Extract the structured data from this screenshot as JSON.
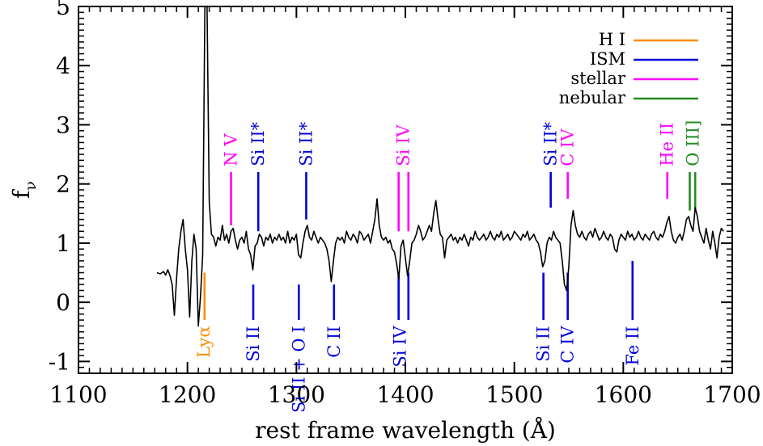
{
  "chart_data": {
    "type": "line",
    "xlabel": "rest frame wavelength (Å)",
    "ylabel": "f",
    "ylabel_sub": "ν",
    "xlim": [
      1100,
      1700
    ],
    "ylim": [
      -1.2,
      5
    ],
    "x_ticks": [
      1100,
      1200,
      1300,
      1400,
      1500,
      1600,
      1700
    ],
    "y_ticks": [
      -1,
      0,
      1,
      2,
      3,
      4,
      5
    ],
    "x_tick_labels": [
      "1100",
      "1200",
      "1300",
      "1400",
      "1500",
      "1600",
      "1700"
    ],
    "y_tick_labels": [
      "-1",
      "0",
      "1",
      "2",
      "3",
      "4",
      "5"
    ],
    "spectrum": {
      "color": "#000000",
      "points": [
        [
          1172,
          0.5
        ],
        [
          1175,
          0.48
        ],
        [
          1178,
          0.52
        ],
        [
          1180,
          0.46
        ],
        [
          1182,
          0.55
        ],
        [
          1184,
          0.45
        ],
        [
          1186,
          0.3
        ],
        [
          1188,
          -0.22
        ],
        [
          1190,
          0.4
        ],
        [
          1192,
          0.9
        ],
        [
          1194,
          1.2
        ],
        [
          1196,
          1.4
        ],
        [
          1198,
          0.9
        ],
        [
          1200,
          0.55
        ],
        [
          1202,
          -0.25
        ],
        [
          1204,
          0.7
        ],
        [
          1206,
          1.15
        ],
        [
          1208,
          0.9
        ],
        [
          1210,
          -0.4
        ],
        [
          1212,
          0.1
        ],
        [
          1214,
          0.8
        ],
        [
          1216,
          5.05
        ],
        [
          1218,
          5.05
        ],
        [
          1220,
          1.7
        ],
        [
          1222,
          1.15
        ],
        [
          1224,
          1.1
        ],
        [
          1226,
          0.95
        ],
        [
          1228,
          1.1
        ],
        [
          1230,
          1.05
        ],
        [
          1232,
          1.3
        ],
        [
          1234,
          1.05
        ],
        [
          1236,
          1.15
        ],
        [
          1238,
          1.0
        ],
        [
          1240,
          1.2
        ],
        [
          1242,
          1.25
        ],
        [
          1244,
          1.05
        ],
        [
          1246,
          0.9
        ],
        [
          1248,
          1.05
        ],
        [
          1250,
          1.1
        ],
        [
          1252,
          1.0
        ],
        [
          1254,
          1.2
        ],
        [
          1256,
          0.9
        ],
        [
          1258,
          0.8
        ],
        [
          1260,
          0.55
        ],
        [
          1262,
          0.95
        ],
        [
          1264,
          1.0
        ],
        [
          1266,
          1.15
        ],
        [
          1268,
          1.1
        ],
        [
          1270,
          0.95
        ],
        [
          1272,
          1.1
        ],
        [
          1274,
          1.05
        ],
        [
          1276,
          1.15
        ],
        [
          1278,
          1.0
        ],
        [
          1280,
          1.1
        ],
        [
          1282,
          1.05
        ],
        [
          1284,
          1.15
        ],
        [
          1286,
          1.05
        ],
        [
          1288,
          1.1
        ],
        [
          1290,
          1.0
        ],
        [
          1292,
          1.2
        ],
        [
          1294,
          1.0
        ],
        [
          1296,
          1.1
        ],
        [
          1298,
          1.05
        ],
        [
          1300,
          1.15
        ],
        [
          1302,
          0.8
        ],
        [
          1304,
          0.75
        ],
        [
          1306,
          1.0
        ],
        [
          1308,
          1.2
        ],
        [
          1310,
          1.3
        ],
        [
          1312,
          1.1
        ],
        [
          1314,
          1.05
        ],
        [
          1316,
          1.2
        ],
        [
          1318,
          1.1
        ],
        [
          1320,
          1.0
        ],
        [
          1322,
          1.1
        ],
        [
          1324,
          1.05
        ],
        [
          1326,
          1.0
        ],
        [
          1328,
          0.9
        ],
        [
          1330,
          0.7
        ],
        [
          1332,
          0.35
        ],
        [
          1334,
          0.7
        ],
        [
          1336,
          1.0
        ],
        [
          1338,
          1.1
        ],
        [
          1340,
          1.05
        ],
        [
          1342,
          1.1
        ],
        [
          1344,
          1.0
        ],
        [
          1346,
          1.2
        ],
        [
          1348,
          1.1
        ],
        [
          1350,
          1.05
        ],
        [
          1352,
          1.15
        ],
        [
          1354,
          1.1
        ],
        [
          1356,
          1.0
        ],
        [
          1358,
          1.2
        ],
        [
          1360,
          1.15
        ],
        [
          1362,
          1.05
        ],
        [
          1364,
          1.1
        ],
        [
          1366,
          1.15
        ],
        [
          1368,
          1.0
        ],
        [
          1370,
          1.2
        ],
        [
          1372,
          1.4
        ],
        [
          1374,
          1.75
        ],
        [
          1376,
          1.3
        ],
        [
          1378,
          1.1
        ],
        [
          1380,
          1.05
        ],
        [
          1382,
          1.1
        ],
        [
          1384,
          1.0
        ],
        [
          1386,
          1.05
        ],
        [
          1388,
          0.9
        ],
        [
          1390,
          0.85
        ],
        [
          1392,
          0.65
        ],
        [
          1394,
          0.4
        ],
        [
          1396,
          0.95
        ],
        [
          1398,
          1.05
        ],
        [
          1400,
          0.75
        ],
        [
          1402,
          0.45
        ],
        [
          1404,
          0.7
        ],
        [
          1406,
          1.0
        ],
        [
          1408,
          1.05
        ],
        [
          1410,
          1.15
        ],
        [
          1412,
          1.3
        ],
        [
          1414,
          1.2
        ],
        [
          1416,
          1.05
        ],
        [
          1418,
          1.1
        ],
        [
          1420,
          1.2
        ],
        [
          1422,
          1.3
        ],
        [
          1424,
          1.2
        ],
        [
          1426,
          1.5
        ],
        [
          1428,
          1.72
        ],
        [
          1430,
          1.4
        ],
        [
          1432,
          1.15
        ],
        [
          1434,
          1.1
        ],
        [
          1436,
          0.75
        ],
        [
          1438,
          1.05
        ],
        [
          1440,
          1.1
        ],
        [
          1442,
          1.15
        ],
        [
          1444,
          1.05
        ],
        [
          1446,
          1.1
        ],
        [
          1448,
          1.0
        ],
        [
          1450,
          1.1
        ],
        [
          1452,
          1.05
        ],
        [
          1454,
          1.15
        ],
        [
          1456,
          1.05
        ],
        [
          1458,
          0.95
        ],
        [
          1460,
          1.1
        ],
        [
          1462,
          1.05
        ],
        [
          1464,
          1.2
        ],
        [
          1466,
          1.1
        ],
        [
          1468,
          1.05
        ],
        [
          1470,
          1.1
        ],
        [
          1472,
          1.15
        ],
        [
          1474,
          1.05
        ],
        [
          1476,
          1.1
        ],
        [
          1478,
          1.2
        ],
        [
          1480,
          1.1
        ],
        [
          1482,
          1.05
        ],
        [
          1484,
          1.15
        ],
        [
          1486,
          1.1
        ],
        [
          1488,
          1.2
        ],
        [
          1490,
          1.05
        ],
        [
          1492,
          1.1
        ],
        [
          1494,
          1.15
        ],
        [
          1496,
          1.05
        ],
        [
          1498,
          1.1
        ],
        [
          1500,
          1.2
        ],
        [
          1502,
          1.15
        ],
        [
          1504,
          1.1
        ],
        [
          1506,
          1.05
        ],
        [
          1508,
          1.15
        ],
        [
          1510,
          1.1
        ],
        [
          1512,
          1.2
        ],
        [
          1514,
          1.05
        ],
        [
          1516,
          1.1
        ],
        [
          1518,
          1.15
        ],
        [
          1520,
          1.05
        ],
        [
          1522,
          1.0
        ],
        [
          1524,
          0.85
        ],
        [
          1526,
          0.6
        ],
        [
          1528,
          0.7
        ],
        [
          1530,
          1.0
        ],
        [
          1532,
          1.1
        ],
        [
          1534,
          1.05
        ],
        [
          1536,
          1.2
        ],
        [
          1538,
          1.1
        ],
        [
          1540,
          1.05
        ],
        [
          1542,
          1.0
        ],
        [
          1544,
          0.7
        ],
        [
          1546,
          0.3
        ],
        [
          1548,
          0.2
        ],
        [
          1550,
          0.6
        ],
        [
          1552,
          1.3
        ],
        [
          1554,
          1.55
        ],
        [
          1556,
          1.3
        ],
        [
          1558,
          1.15
        ],
        [
          1560,
          1.1
        ],
        [
          1562,
          1.2
        ],
        [
          1564,
          1.1
        ],
        [
          1566,
          1.05
        ],
        [
          1568,
          1.15
        ],
        [
          1570,
          1.2
        ],
        [
          1572,
          1.1
        ],
        [
          1574,
          1.25
        ],
        [
          1576,
          1.15
        ],
        [
          1578,
          1.05
        ],
        [
          1580,
          1.1
        ],
        [
          1582,
          1.2
        ],
        [
          1584,
          1.1
        ],
        [
          1586,
          1.05
        ],
        [
          1588,
          1.15
        ],
        [
          1590,
          1.1
        ],
        [
          1592,
          0.9
        ],
        [
          1594,
          0.85
        ],
        [
          1596,
          1.05
        ],
        [
          1598,
          1.15
        ],
        [
          1600,
          1.1
        ],
        [
          1602,
          1.05
        ],
        [
          1604,
          1.2
        ],
        [
          1606,
          1.1
        ],
        [
          1608,
          1.15
        ],
        [
          1610,
          1.05
        ],
        [
          1612,
          1.1
        ],
        [
          1614,
          1.2
        ],
        [
          1616,
          1.1
        ],
        [
          1618,
          1.05
        ],
        [
          1620,
          1.15
        ],
        [
          1622,
          1.1
        ],
        [
          1624,
          1.05
        ],
        [
          1626,
          1.15
        ],
        [
          1628,
          1.2
        ],
        [
          1630,
          1.1
        ],
        [
          1632,
          1.05
        ],
        [
          1634,
          1.15
        ],
        [
          1636,
          1.1
        ],
        [
          1638,
          1.2
        ],
        [
          1640,
          1.35
        ],
        [
          1642,
          1.45
        ],
        [
          1644,
          1.2
        ],
        [
          1646,
          1.05
        ],
        [
          1648,
          1.0
        ],
        [
          1650,
          1.1
        ],
        [
          1652,
          1.15
        ],
        [
          1654,
          1.05
        ],
        [
          1656,
          1.2
        ],
        [
          1658,
          1.4
        ],
        [
          1660,
          1.45
        ],
        [
          1662,
          1.3
        ],
        [
          1664,
          1.2
        ],
        [
          1666,
          1.6
        ],
        [
          1668,
          1.45
        ],
        [
          1670,
          1.2
        ],
        [
          1672,
          1.1
        ],
        [
          1674,
          1.0
        ],
        [
          1676,
          1.25
        ],
        [
          1678,
          1.05
        ],
        [
          1680,
          0.9
        ],
        [
          1682,
          1.2
        ],
        [
          1684,
          1.0
        ],
        [
          1686,
          0.75
        ],
        [
          1688,
          1.1
        ],
        [
          1690,
          1.25
        ],
        [
          1692,
          1.2
        ]
      ]
    },
    "line_groups": [
      {
        "name": "H I",
        "color": "#ff8c00"
      },
      {
        "name": "ISM",
        "color": "#0000dd"
      },
      {
        "name": "stellar",
        "color": "#ff00ff"
      },
      {
        "name": "nebular",
        "color": "#228b22"
      }
    ],
    "line_marks": [
      {
        "x": 1215.7,
        "y_top": 0.5,
        "y_bottom": -0.3,
        "group": "H I",
        "color": "#ff8c00"
      },
      {
        "x": 1240,
        "y_top": 2.2,
        "y_bottom": 1.3,
        "group": "stellar",
        "color": "#ff00ff"
      },
      {
        "x": 1265,
        "y_top": 2.2,
        "y_bottom": 1.2,
        "group": "ISM",
        "color": "#0000dd"
      },
      {
        "x": 1309,
        "y_top": 2.2,
        "y_bottom": 1.4,
        "group": "ISM",
        "color": "#0000dd"
      },
      {
        "x": 1393.8,
        "y_top": 2.2,
        "y_bottom": 1.2,
        "group": "stellar",
        "color": "#ff00ff"
      },
      {
        "x": 1402.8,
        "y_top": 2.2,
        "y_bottom": 1.2,
        "group": "stellar",
        "color": "#ff00ff"
      },
      {
        "x": 1533.4,
        "y_top": 2.2,
        "y_bottom": 1.6,
        "group": "ISM",
        "color": "#0000dd"
      },
      {
        "x": 1549,
        "y_top": 2.2,
        "y_bottom": 1.75,
        "group": "stellar",
        "color": "#ff00ff"
      },
      {
        "x": 1640.4,
        "y_top": 2.2,
        "y_bottom": 1.75,
        "group": "stellar",
        "color": "#ff00ff"
      },
      {
        "x": 1661,
        "y_top": 2.2,
        "y_bottom": 1.55,
        "group": "nebular",
        "color": "#228b22"
      },
      {
        "x": 1666,
        "y_top": 2.2,
        "y_bottom": 1.55,
        "group": "nebular",
        "color": "#228b22"
      },
      {
        "x": 1260.4,
        "y_top": 0.3,
        "y_bottom": -0.3,
        "group": "ISM",
        "color": "#0000dd"
      },
      {
        "x": 1302.2,
        "y_top": 0.3,
        "y_bottom": -0.3,
        "group": "ISM",
        "color": "#0000dd"
      },
      {
        "x": 1334.5,
        "y_top": 0.3,
        "y_bottom": -0.3,
        "group": "ISM",
        "color": "#0000dd"
      },
      {
        "x": 1393.8,
        "y_top": 0.5,
        "y_bottom": -0.3,
        "group": "ISM",
        "color": "#0000dd"
      },
      {
        "x": 1402.8,
        "y_top": 0.5,
        "y_bottom": -0.3,
        "group": "ISM",
        "color": "#0000dd"
      },
      {
        "x": 1526.7,
        "y_top": 0.5,
        "y_bottom": -0.3,
        "group": "ISM",
        "color": "#0000dd"
      },
      {
        "x": 1549,
        "y_top": 0.5,
        "y_bottom": -0.3,
        "group": "ISM",
        "color": "#0000dd"
      },
      {
        "x": 1608.5,
        "y_top": 0.7,
        "y_bottom": -0.3,
        "group": "ISM",
        "color": "#0000dd"
      }
    ],
    "line_labels": [
      {
        "text": "Lyα",
        "x": 1215,
        "y": -0.4,
        "anchor": "end",
        "color": "#ff8c00"
      },
      {
        "text": "N V",
        "x": 1240,
        "y": 2.3,
        "anchor": "start",
        "color": "#ff00ff"
      },
      {
        "text": "Si II*",
        "x": 1265,
        "y": 2.3,
        "anchor": "start",
        "color": "#0000dd"
      },
      {
        "text": "Si II*",
        "x": 1309,
        "y": 2.3,
        "anchor": "start",
        "color": "#0000dd"
      },
      {
        "text": "Si IV",
        "x": 1398,
        "y": 2.3,
        "anchor": "start",
        "color": "#ff00ff"
      },
      {
        "text": "Si II*",
        "x": 1533.4,
        "y": 2.3,
        "anchor": "start",
        "color": "#0000dd"
      },
      {
        "text": "C IV",
        "x": 1549,
        "y": 2.3,
        "anchor": "start",
        "color": "#ff00ff"
      },
      {
        "text": "He II",
        "x": 1640.4,
        "y": 2.3,
        "anchor": "start",
        "color": "#ff00ff"
      },
      {
        "text": "O III]",
        "x": 1664,
        "y": 2.3,
        "anchor": "start",
        "color": "#228b22"
      },
      {
        "text": "Si II",
        "x": 1260.4,
        "y": -0.4,
        "anchor": "end",
        "color": "#0000dd"
      },
      {
        "text": "Si II + O I",
        "x": 1302.2,
        "y": -0.4,
        "anchor": "end",
        "color": "#0000dd"
      },
      {
        "text": "C II",
        "x": 1334.5,
        "y": -0.4,
        "anchor": "end",
        "color": "#0000dd"
      },
      {
        "text": "Si IV",
        "x": 1395,
        "y": -0.4,
        "anchor": "end",
        "color": "#0000dd"
      },
      {
        "text": "Si II",
        "x": 1526.7,
        "y": -0.4,
        "anchor": "end",
        "color": "#0000dd"
      },
      {
        "text": "C IV",
        "x": 1549,
        "y": -0.4,
        "anchor": "end",
        "color": "#0000dd"
      },
      {
        "text": "Fe II",
        "x": 1608.5,
        "y": -0.4,
        "anchor": "end",
        "color": "#0000dd"
      }
    ],
    "legend": {
      "position": "top-right",
      "entries": [
        {
          "label": "H I",
          "color": "#ff8c00"
        },
        {
          "label": "ISM",
          "color": "#0000dd"
        },
        {
          "label": "stellar",
          "color": "#ff00ff"
        },
        {
          "label": "nebular",
          "color": "#228b22"
        }
      ]
    }
  }
}
